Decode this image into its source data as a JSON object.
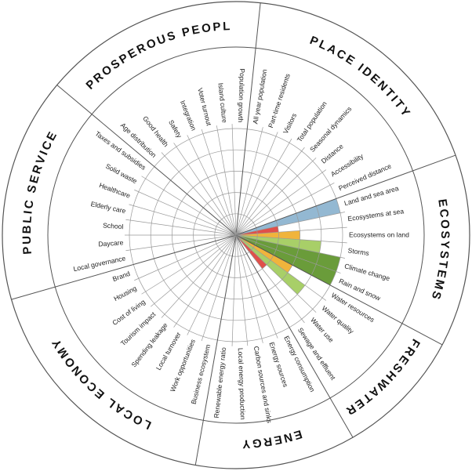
{
  "chart_data": {
    "type": "radial",
    "rlim": [
      0,
      5
    ],
    "rticks": [
      1,
      2,
      3,
      4,
      5
    ],
    "sectors": [
      {
        "name": "PLACE IDENTITY",
        "items": [
          {
            "label": "All year population",
            "value": null,
            "color": null
          },
          {
            "label": "Part-time residents",
            "value": null,
            "color": null
          },
          {
            "label": "Visitors",
            "value": null,
            "color": null
          },
          {
            "label": "Total population",
            "value": null,
            "color": null
          },
          {
            "label": "Seasonal dynamics",
            "value": null,
            "color": null
          },
          {
            "label": "Distance",
            "value": null,
            "color": null
          },
          {
            "label": "Accessibility",
            "value": null,
            "color": null
          },
          {
            "label": "Perceived distance",
            "value": null,
            "color": null
          }
        ]
      },
      {
        "name": "ECOSYSTEMS",
        "items": [
          {
            "label": "Land and sea area",
            "value": 5,
            "color": "#93b8d2"
          },
          {
            "label": "Ecosystems at sea",
            "value": 2,
            "color": "#e0504a"
          },
          {
            "label": "Ecosystems on land",
            "value": 3,
            "color": "#f0b43c"
          },
          {
            "label": "Storms",
            "value": 4,
            "color": "#a8cf68"
          },
          {
            "label": "Climate change",
            "value": 5,
            "color": "#6a9c3a"
          },
          {
            "label": "Rain and snow",
            "value": 5,
            "color": "#6a9c3a"
          }
        ]
      },
      {
        "name": "FRESHWATER",
        "items": [
          {
            "label": "Water resources",
            "value": 3,
            "color": "#f0b43c"
          },
          {
            "label": "Water quality",
            "value": 4,
            "color": "#a8cf68"
          },
          {
            "label": "Water use",
            "value": 2,
            "color": "#e0504a"
          },
          {
            "label": "Sewage and effluent",
            "value": null,
            "color": null
          }
        ]
      },
      {
        "name": "ENERGY",
        "items": [
          {
            "label": "Energy consumption",
            "value": null,
            "color": null
          },
          {
            "label": "Energy sources",
            "value": null,
            "color": null
          },
          {
            "label": "Carbon sources and sinks",
            "value": null,
            "color": null
          },
          {
            "label": "Local energy production",
            "value": null,
            "color": null
          },
          {
            "label": "Renewable energy ratio",
            "value": null,
            "color": null
          }
        ]
      },
      {
        "name": "LOCAL ECONOMY",
        "items": [
          {
            "label": "Business ecosystem",
            "value": null,
            "color": null
          },
          {
            "label": "Work opportunities",
            "value": null,
            "color": null
          },
          {
            "label": "Local turnover",
            "value": null,
            "color": null
          },
          {
            "label": "Spending leakage",
            "value": null,
            "color": null
          },
          {
            "label": "Tourism impact",
            "value": null,
            "color": null
          },
          {
            "label": "Cost of living",
            "value": null,
            "color": null
          },
          {
            "label": "Housing",
            "value": null,
            "color": null
          },
          {
            "label": "Brand",
            "value": null,
            "color": null
          }
        ]
      },
      {
        "name": "PUBLIC SERVICE",
        "items": [
          {
            "label": "Local governance",
            "value": null,
            "color": null
          },
          {
            "label": "Daycare",
            "value": null,
            "color": null
          },
          {
            "label": "School",
            "value": null,
            "color": null
          },
          {
            "label": "Elderly care",
            "value": null,
            "color": null
          },
          {
            "label": "Healthcare",
            "value": null,
            "color": null
          },
          {
            "label": "Solid waste",
            "value": null,
            "color": null
          },
          {
            "label": "Taxes and subsidies",
            "value": null,
            "color": null
          }
        ]
      },
      {
        "name": "PROSPEROUS PEOPLE",
        "items": [
          {
            "label": "Age distribution",
            "value": null,
            "color": null
          },
          {
            "label": "Good health",
            "value": null,
            "color": null
          },
          {
            "label": "Safety",
            "value": null,
            "color": null
          },
          {
            "label": "Integration",
            "value": null,
            "color": null
          },
          {
            "label": "Voter turnout",
            "value": null,
            "color": null
          },
          {
            "label": "Island culture",
            "value": null,
            "color": null
          },
          {
            "label": "Population growth",
            "value": null,
            "color": null
          }
        ]
      }
    ]
  }
}
